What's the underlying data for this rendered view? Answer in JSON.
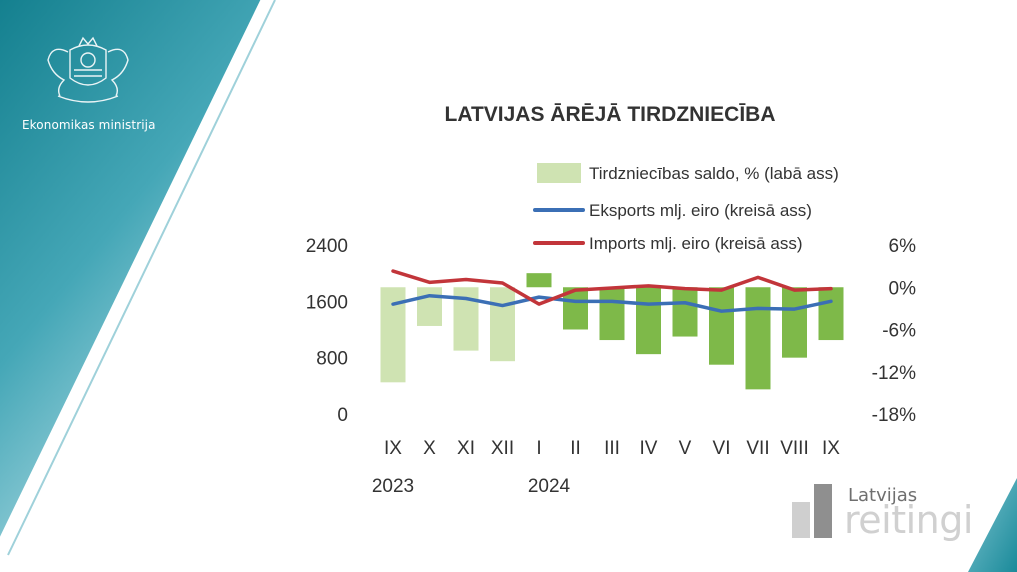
{
  "branding": {
    "ministry_label": "Ekonomikas ministrija",
    "watermark_top": "Latvijas",
    "watermark_big": "reitingi",
    "teal": "#1a8a9a",
    "crest_icon": "latvia-coat-of-arms-icon",
    "watermark_icon": "bar-logo-icon"
  },
  "chart_data": {
    "type": "bar+line",
    "title": "LATVIJAS ĀRĒJĀ TIRDZNIECĪBA",
    "categories": [
      "IX",
      "X",
      "XI",
      "XII",
      "I",
      "II",
      "III",
      "IV",
      "V",
      "VI",
      "VII",
      "VIII",
      "IX"
    ],
    "year_labels": [
      {
        "label": "2023",
        "category_index": 0
      },
      {
        "label": "2024",
        "category_index": 4
      }
    ],
    "left_axis": {
      "ticks": [
        "0",
        "800",
        "1600",
        "2400"
      ],
      "ylim": [
        0,
        2400
      ]
    },
    "right_axis": {
      "ticks": [
        "-18%",
        "-12%",
        "-6%",
        "0%",
        "6%"
      ],
      "ylim": [
        -18,
        6
      ]
    },
    "series": [
      {
        "name": "Tirdzniecības saldo, % (labā ass)",
        "type": "bar",
        "axis": "right",
        "values": [
          -13.5,
          -5.5,
          -9,
          -10.5,
          2,
          -6,
          -7.5,
          -9.5,
          -7,
          -11,
          -14.5,
          -10,
          -7.5
        ],
        "colors": [
          "#cfe3b2",
          "#cfe3b2",
          "#cfe3b2",
          "#cfe3b2",
          "#7eb949",
          "#7eb949",
          "#7eb949",
          "#7eb949",
          "#7eb949",
          "#7eb949",
          "#7eb949",
          "#7eb949",
          "#7eb949"
        ]
      },
      {
        "name": "Eksports mlj. eiro (kreisā ass)",
        "type": "line",
        "axis": "left",
        "color": "#3b6fb5",
        "values": [
          1560,
          1680,
          1640,
          1540,
          1660,
          1600,
          1600,
          1560,
          1580,
          1460,
          1500,
          1490,
          1600
        ]
      },
      {
        "name": "Imports mlj. eiro (kreisā ass)",
        "type": "line",
        "axis": "left",
        "color": "#c2353a",
        "values": [
          2030,
          1870,
          1910,
          1860,
          1560,
          1760,
          1790,
          1820,
          1780,
          1760,
          1940,
          1760,
          1780
        ]
      }
    ]
  }
}
